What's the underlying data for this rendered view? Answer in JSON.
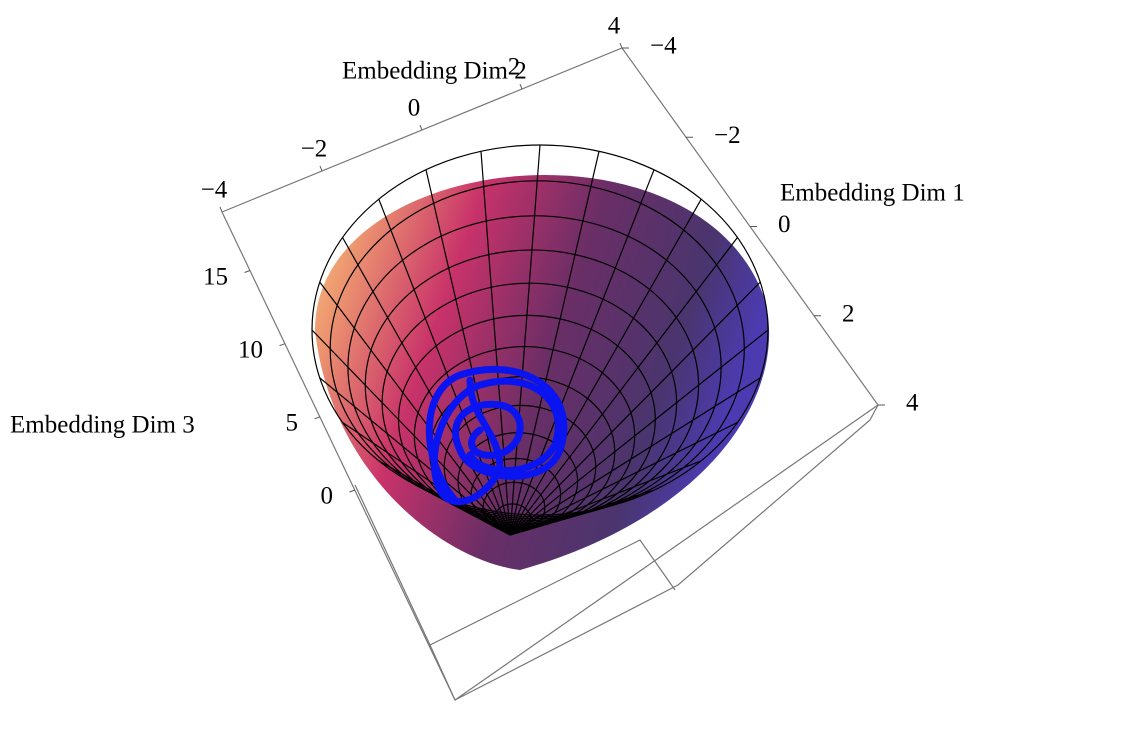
{
  "chart_data": {
    "type": "surface3d",
    "xlabel": "Embedding Dim 1",
    "ylabel": "Embedding Dim 2",
    "zlabel": "Embedding Dim 3",
    "xlim": [
      -4,
      4
    ],
    "ylim": [
      -4,
      4
    ],
    "zlim": [
      0,
      19
    ],
    "xticks": [
      {
        "value": -4,
        "label": "−4"
      },
      {
        "value": -2,
        "label": "−2"
      },
      0,
      2,
      4
    ],
    "yticks": [
      {
        "value": -4,
        "label": "−4"
      },
      {
        "value": -2,
        "label": "−2"
      },
      0,
      2,
      4
    ],
    "zticks": [
      0,
      5,
      10,
      15
    ],
    "line_color": "#0a14f0"
  }
}
